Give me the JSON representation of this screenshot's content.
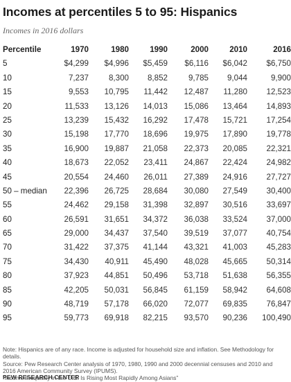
{
  "title": "Incomes at percentiles 5 to 95: Hispanics",
  "subtitle": "Incomes in 2016 dollars",
  "table": {
    "header_label": "Percentile",
    "years": [
      "1970",
      "1980",
      "1990",
      "2000",
      "2010",
      "2016"
    ],
    "rows": [
      {
        "label": "5",
        "values": [
          "$4,299",
          "$4,996",
          "$5,459",
          "$6,116",
          "$6,042",
          "$6,750"
        ]
      },
      {
        "label": "10",
        "values": [
          "7,237",
          "8,300",
          "8,852",
          "9,785",
          "9,044",
          "9,900"
        ]
      },
      {
        "label": "15",
        "values": [
          "9,553",
          "10,795",
          "11,442",
          "12,487",
          "11,280",
          "12,523"
        ]
      },
      {
        "label": "20",
        "values": [
          "11,533",
          "13,126",
          "14,013",
          "15,086",
          "13,464",
          "14,893"
        ]
      },
      {
        "label": "25",
        "values": [
          "13,239",
          "15,432",
          "16,292",
          "17,478",
          "15,721",
          "17,254"
        ]
      },
      {
        "label": "30",
        "values": [
          "15,198",
          "17,770",
          "18,696",
          "19,975",
          "17,890",
          "19,778"
        ]
      },
      {
        "label": "35",
        "values": [
          "16,900",
          "19,887",
          "21,058",
          "22,373",
          "20,085",
          "22,321"
        ]
      },
      {
        "label": "40",
        "values": [
          "18,673",
          "22,052",
          "23,411",
          "24,867",
          "22,424",
          "24,982"
        ]
      },
      {
        "label": "45",
        "values": [
          "20,554",
          "24,460",
          "26,011",
          "27,389",
          "24,916",
          "27,727"
        ]
      },
      {
        "label": "50 – median",
        "values": [
          "22,396",
          "26,725",
          "28,684",
          "30,080",
          "27,549",
          "30,400"
        ]
      },
      {
        "label": "55",
        "values": [
          "24,462",
          "29,158",
          "31,398",
          "32,897",
          "30,516",
          "33,697"
        ]
      },
      {
        "label": "60",
        "values": [
          "26,591",
          "31,651",
          "34,372",
          "36,038",
          "33,524",
          "37,000"
        ]
      },
      {
        "label": "65",
        "values": [
          "29,000",
          "34,437",
          "37,540",
          "39,519",
          "37,077",
          "40,754"
        ]
      },
      {
        "label": "70",
        "values": [
          "31,422",
          "37,375",
          "41,144",
          "43,321",
          "41,003",
          "45,283"
        ]
      },
      {
        "label": "75",
        "values": [
          "34,430",
          "40,911",
          "45,490",
          "48,028",
          "45,665",
          "50,314"
        ]
      },
      {
        "label": "80",
        "values": [
          "37,923",
          "44,851",
          "50,496",
          "53,718",
          "51,638",
          "56,355"
        ]
      },
      {
        "label": "85",
        "values": [
          "42,205",
          "50,031",
          "56,845",
          "61,159",
          "58,942",
          "64,608"
        ]
      },
      {
        "label": "90",
        "values": [
          "48,719",
          "57,178",
          "66,020",
          "72,077",
          "69,835",
          "76,847"
        ]
      },
      {
        "label": "95",
        "values": [
          "59,773",
          "69,918",
          "82,215",
          "93,570",
          "90,236",
          "100,490"
        ]
      }
    ]
  },
  "note": "Note: Hispanics are of any race. Income is adjusted for household size and inflation. See Methodology for details.",
  "source_line1": "Source: Pew Research Center analysis of 1970, 1980, 1990 and 2000 decennial censuses and 2010 and 2016 American Community Survey (IPUMS).",
  "source_line2": "“Income Inequality in the U.S. Is Rising Most Rapidly Among Asians”",
  "credit": "PEW RESEARCH CENTER"
}
